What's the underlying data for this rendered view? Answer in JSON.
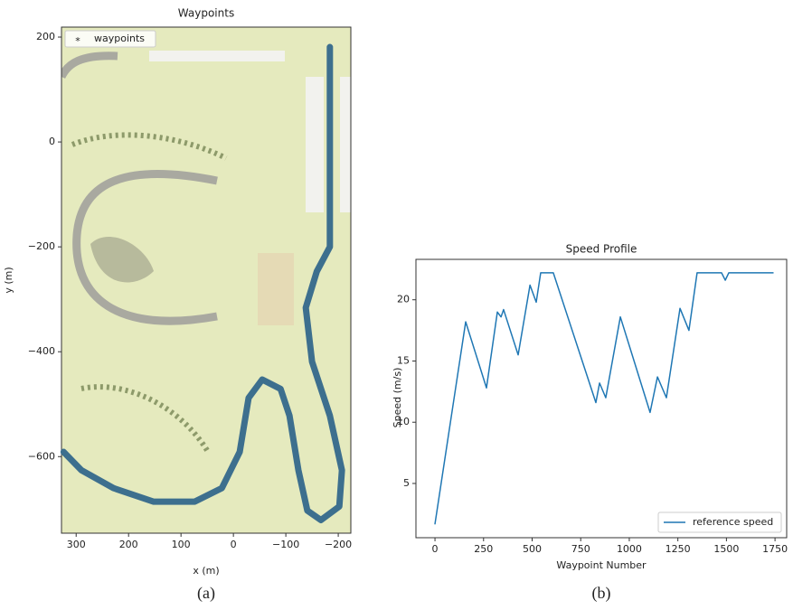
{
  "chart_data": [
    {
      "type": "line",
      "title": "Waypoints",
      "xlabel": "x (m)",
      "ylabel": "y (m)",
      "caption": "(a)",
      "x": [
        -184,
        -184,
        -184,
        -159,
        -138,
        -150,
        -184,
        -207,
        -202,
        -167,
        -141,
        -124,
        -107,
        -90,
        -55,
        -29,
        -12,
        22,
        74,
        152,
        229,
        290,
        324
      ],
      "series": [
        {
          "name": "waypoints",
          "color": "#3d6f8e",
          "values": [
            181,
            0,
            -200,
            -247,
            -316,
            -419,
            -522,
            -626,
            -695,
            -721,
            -703,
            -626,
            -522,
            -471,
            -453,
            -488,
            -591,
            -660,
            -686,
            -686,
            -660,
            -626,
            -591
          ]
        }
      ],
      "xlim": [
        328,
        -224
      ],
      "ylim": [
        -746,
        219
      ],
      "xticks": [
        300,
        200,
        100,
        0,
        {
          "value": -100,
          "label": "−100"
        },
        {
          "value": -200,
          "label": "−200"
        }
      ],
      "yticks": [
        200,
        0,
        {
          "value": -200,
          "label": "−200"
        },
        {
          "value": -400,
          "label": "−400"
        },
        {
          "value": -600,
          "label": "−600"
        }
      ],
      "legend": "upper left",
      "marker": "*"
    },
    {
      "type": "line",
      "title": "Speed Profile",
      "xlabel": "Waypoint Number",
      "ylabel": "Speed (m/s)",
      "caption": "(b)",
      "x": [
        0,
        158,
        265,
        321,
        340,
        353,
        428,
        489,
        521,
        544,
        609,
        828,
        847,
        879,
        954,
        1107,
        1145,
        1191,
        1261,
        1307,
        1349,
        1475,
        1494,
        1512,
        1740
      ],
      "series": [
        {
          "name": "reference speed",
          "color": "#1f77b4",
          "values": [
            1.7,
            18.2,
            12.8,
            19.0,
            18.6,
            19.2,
            15.5,
            21.2,
            19.8,
            22.2,
            22.2,
            11.6,
            13.2,
            12.0,
            18.6,
            10.8,
            13.7,
            12.0,
            19.3,
            17.5,
            22.2,
            22.2,
            21.6,
            22.2,
            22.2
          ]
        }
      ],
      "xlim": [
        -98,
        1810
      ],
      "ylim": [
        0.57,
        23.3
      ],
      "xticks": [
        0,
        250,
        500,
        750,
        1000,
        1250,
        1500,
        1750
      ],
      "yticks": [
        5,
        10,
        15,
        20
      ],
      "legend": "lower right"
    }
  ]
}
